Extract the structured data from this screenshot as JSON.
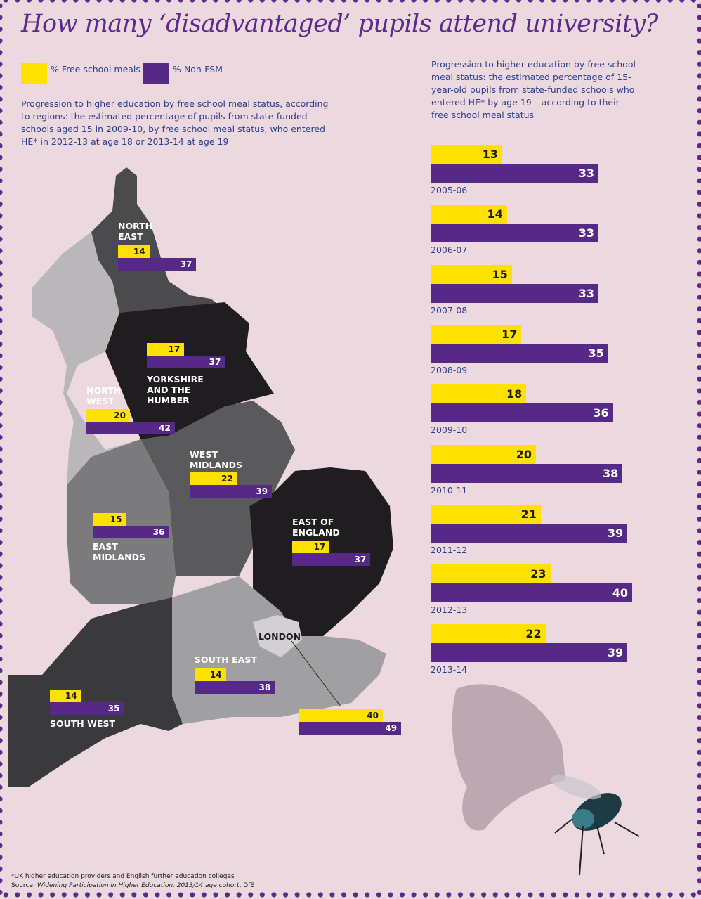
{
  "title": "How many ‘disadvantaged’ pupils attend university?",
  "legend": [
    {
      "label": "% Free school meals",
      "color": "#ffe100"
    },
    {
      "label": "% Non-FSM",
      "color": "#572987"
    }
  ],
  "map_description": "Progression to higher education by free school meal status, according to regions: the estimated percentage of pupils from state-funded schools aged 15 in 2009-10, by free school meal status, who entered HE* in 2012-13 at age 18 or 2013-14 at age 19",
  "chart_description": "Progression to higher education by free school meal status: the estimated percentage of 15-year-old pupils from state-funded schools who entered HE* by age 19 – according to their free school meal status",
  "chart_data": [
    {
      "type": "bar",
      "orientation": "horizontal",
      "title": "Progression to higher education by free school meal status (by age 19)",
      "categories": [
        "2005-06",
        "2006-07",
        "2007-08",
        "2008-09",
        "2009-10",
        "2010-11",
        "2011-12",
        "2012-13",
        "2013-14"
      ],
      "series": [
        {
          "name": "% Free school meals",
          "color": "#ffe100",
          "values": [
            13,
            14,
            15,
            17,
            18,
            20,
            21,
            23,
            22
          ]
        },
        {
          "name": "% Non-FSM",
          "color": "#572987",
          "values": [
            33,
            33,
            33,
            35,
            36,
            38,
            39,
            40,
            39
          ]
        }
      ],
      "xlim": [
        0,
        45
      ]
    },
    {
      "type": "bar",
      "orientation": "horizontal",
      "title": "Progression to higher education by free school meal status, according to regions",
      "categories": [
        "North East",
        "Yorkshire and the Humber",
        "North West",
        "West Midlands",
        "East Midlands",
        "East of England",
        "London",
        "South East",
        "South West"
      ],
      "labels": [
        [
          "NORTH",
          "EAST"
        ],
        [
          "YORKSHIRE",
          "AND THE",
          "HUMBER"
        ],
        [
          "NORTH",
          "WEST"
        ],
        [
          "WEST",
          "MIDLANDS"
        ],
        [
          "EAST",
          "MIDLANDS"
        ],
        [
          "EAST OF",
          "ENGLAND"
        ],
        [
          "LONDON"
        ],
        [
          "SOUTH EAST"
        ],
        [
          "SOUTH WEST"
        ]
      ],
      "series": [
        {
          "name": "% Free school meals",
          "values": [
            14,
            17,
            20,
            22,
            15,
            17,
            40,
            14,
            14
          ]
        },
        {
          "name": "% Non-FSM",
          "values": [
            37,
            37,
            42,
            39,
            36,
            37,
            49,
            38,
            35
          ]
        }
      ]
    }
  ],
  "footnote": "*UK higher education providers and English further education colleges",
  "source_prefix": "Source: ",
  "source_title": "Widening Participation in Higher Education, 2013/14 age cohort",
  "source_suffix": ", DfE"
}
